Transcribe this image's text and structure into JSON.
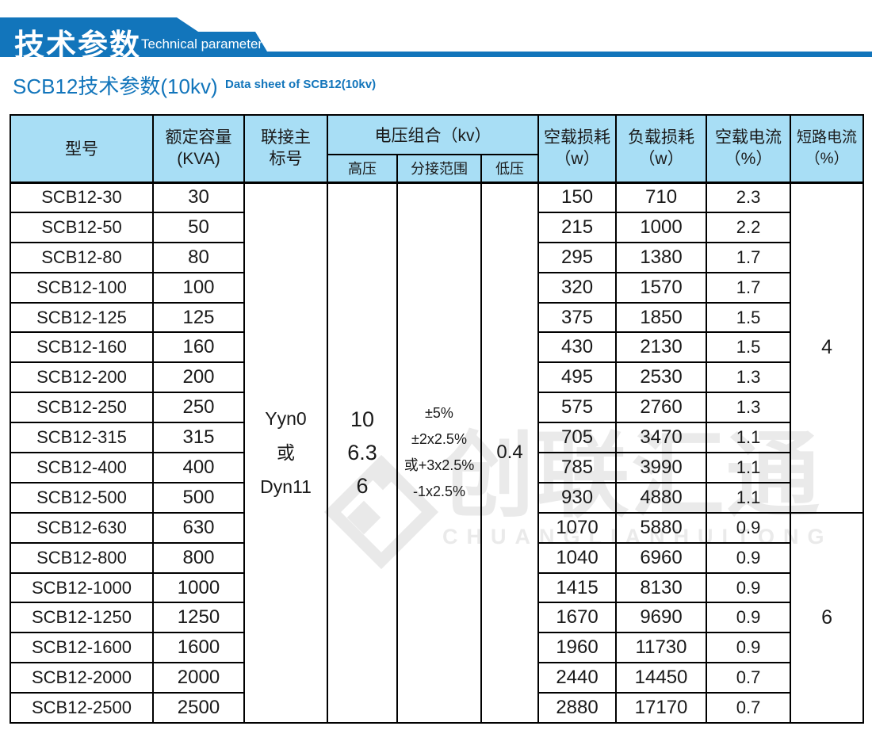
{
  "banner": {
    "title_cn": "技术参数",
    "title_en": "Technical parameter"
  },
  "page_title": {
    "cn": "SCB12技术参数(10kv)",
    "en": "Data sheet of SCB12(10kv)"
  },
  "colors": {
    "banner_blue": "#1275bb",
    "table_header_fill": "#a8def5",
    "title_blue": "#1275bb",
    "border_black": "#000000",
    "watermark_gray": "#eaeaea"
  },
  "table": {
    "headers": {
      "model": "型号",
      "capacity": [
        "额定容量",
        "(KVA)"
      ],
      "vector_group": [
        "联接主",
        "标号"
      ],
      "voltage_combo": "电压组合（kv）",
      "hv": "高压",
      "tap_range": "分接范围",
      "lv": "低压",
      "no_load_loss": [
        "空载损耗",
        "（w）"
      ],
      "load_loss": [
        "负载损耗",
        "（w）"
      ],
      "no_load_current": [
        "空载电流",
        "（%）"
      ],
      "short_circuit_current": [
        "短路电流",
        "（%）"
      ]
    },
    "merged_cells": {
      "vector_group_lines": [
        "Yyn0",
        "或",
        "Dyn11"
      ],
      "hv_lines": [
        "10",
        "6.3",
        "6"
      ],
      "tap_lines": [
        "±5%",
        "±2x2.5%",
        "或+3x2.5%",
        "-1x2.5%"
      ],
      "lv_value": "0.4",
      "short_circuit_groups": [
        {
          "value": "4",
          "row_span": 11
        },
        {
          "value": "6",
          "row_span": 7
        }
      ]
    },
    "rows": [
      {
        "model": "SCB12-30",
        "capacity": "30",
        "no_load_loss": "150",
        "load_loss": "710",
        "no_load_current": "2.3"
      },
      {
        "model": "SCB12-50",
        "capacity": "50",
        "no_load_loss": "215",
        "load_loss": "1000",
        "no_load_current": "2.2"
      },
      {
        "model": "SCB12-80",
        "capacity": "80",
        "no_load_loss": "295",
        "load_loss": "1380",
        "no_load_current": "1.7"
      },
      {
        "model": "SCB12-100",
        "capacity": "100",
        "no_load_loss": "320",
        "load_loss": "1570",
        "no_load_current": "1.7"
      },
      {
        "model": "SCB12-125",
        "capacity": "125",
        "no_load_loss": "375",
        "load_loss": "1850",
        "no_load_current": "1.5"
      },
      {
        "model": "SCB12-160",
        "capacity": "160",
        "no_load_loss": "430",
        "load_loss": "2130",
        "no_load_current": "1.5"
      },
      {
        "model": "SCB12-200",
        "capacity": "200",
        "no_load_loss": "495",
        "load_loss": "2530",
        "no_load_current": "1.3"
      },
      {
        "model": "SCB12-250",
        "capacity": "250",
        "no_load_loss": "575",
        "load_loss": "2760",
        "no_load_current": "1.3"
      },
      {
        "model": "SCB12-315",
        "capacity": "315",
        "no_load_loss": "705",
        "load_loss": "3470",
        "no_load_current": "1.1"
      },
      {
        "model": "SCB12-400",
        "capacity": "400",
        "no_load_loss": "785",
        "load_loss": "3990",
        "no_load_current": "1.1"
      },
      {
        "model": "SCB12-500",
        "capacity": "500",
        "no_load_loss": "930",
        "load_loss": "4880",
        "no_load_current": "1.1"
      },
      {
        "model": "SCB12-630",
        "capacity": "630",
        "no_load_loss": "1070",
        "load_loss": "5880",
        "no_load_current": "0.9"
      },
      {
        "model": "SCB12-800",
        "capacity": "800",
        "no_load_loss": "1040",
        "load_loss": "6960",
        "no_load_current": "0.9"
      },
      {
        "model": "SCB12-1000",
        "capacity": "1000",
        "no_load_loss": "1415",
        "load_loss": "8130",
        "no_load_current": "0.9"
      },
      {
        "model": "SCB12-1250",
        "capacity": "1250",
        "no_load_loss": "1670",
        "load_loss": "9690",
        "no_load_current": "0.9"
      },
      {
        "model": "SCB12-1600",
        "capacity": "1600",
        "no_load_loss": "1960",
        "load_loss": "11730",
        "no_load_current": "0.9"
      },
      {
        "model": "SCB12-2000",
        "capacity": "2000",
        "no_load_loss": "2440",
        "load_loss": "14450",
        "no_load_current": "0.7"
      },
      {
        "model": "SCB12-2500",
        "capacity": "2500",
        "no_load_loss": "2880",
        "load_loss": "17170",
        "no_load_current": "0.7"
      }
    ]
  },
  "watermark": {
    "cn": "创联汇通",
    "en": "CHUANGLIANHUITONG"
  }
}
